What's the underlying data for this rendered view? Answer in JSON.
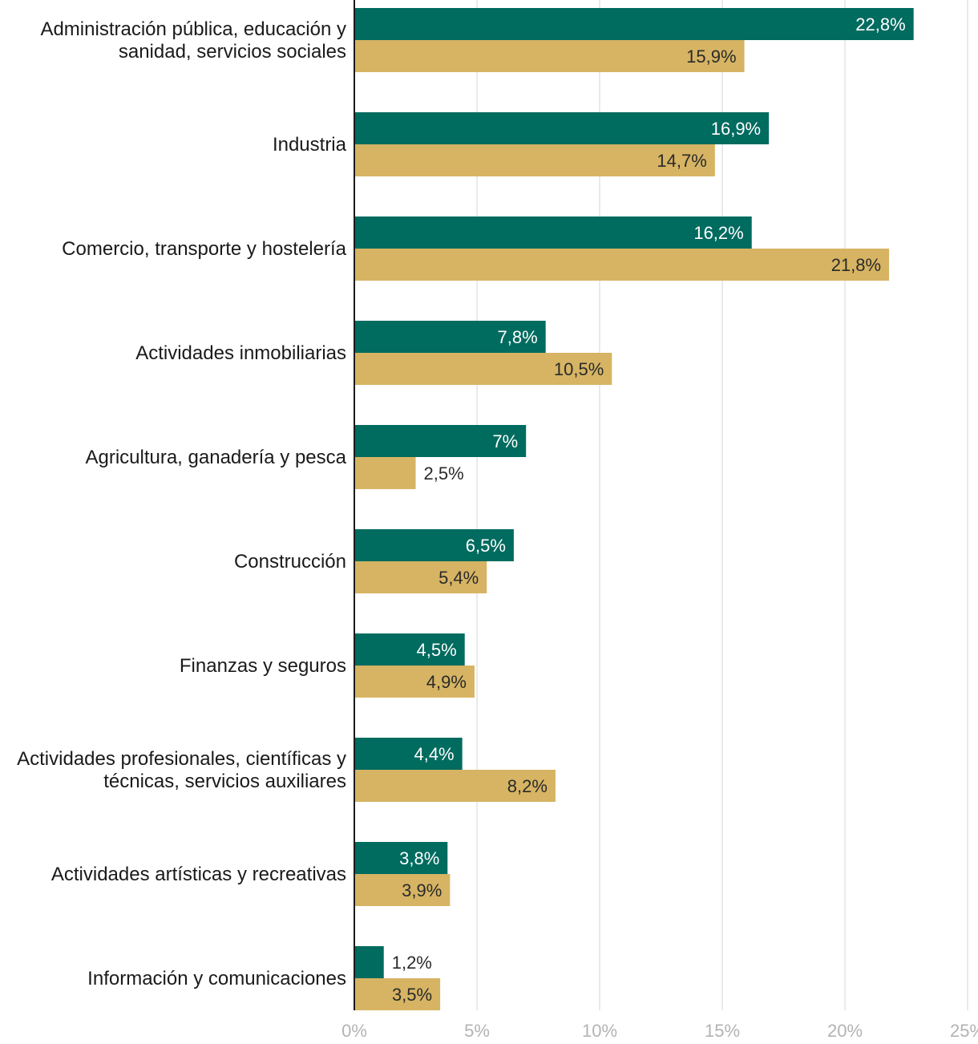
{
  "chart_data": {
    "type": "bar",
    "orientation": "horizontal",
    "categories": [
      [
        "Administración pública, educación y",
        "sanidad, servicios sociales"
      ],
      [
        "Industria"
      ],
      [
        "Comercio, transporte y hostelería"
      ],
      [
        "Actividades inmobiliarias"
      ],
      [
        "Agricultura, ganadería y pesca"
      ],
      [
        "Construcción"
      ],
      [
        "Finanzas y seguros"
      ],
      [
        "Actividades profesionales, científicas y",
        "técnicas, servicios auxiliares"
      ],
      [
        "Actividades artísticas y recreativas"
      ],
      [
        "Información y comunicaciones"
      ]
    ],
    "series": [
      {
        "color": "#006b5f",
        "values": [
          22.8,
          16.9,
          16.2,
          7.8,
          7,
          6.5,
          4.5,
          4.4,
          3.8,
          1.2
        ],
        "labels": [
          "22,8%",
          "16,9%",
          "16,2%",
          "7,8%",
          "7%",
          "6,5%",
          "4,5%",
          "4,4%",
          "3,8%",
          "1,2%"
        ]
      },
      {
        "color": "#d6b463",
        "values": [
          15.9,
          14.7,
          21.8,
          10.5,
          2.5,
          5.4,
          4.9,
          8.2,
          3.9,
          3.5
        ],
        "labels": [
          "15,9%",
          "14,7%",
          "21,8%",
          "10,5%",
          "2,5%",
          "5,4%",
          "4,9%",
          "8,2%",
          "3,9%",
          "3,5%"
        ]
      }
    ],
    "xlim": [
      0,
      25
    ],
    "xticks": [
      0,
      5,
      10,
      15,
      20,
      25
    ],
    "xtick_labels": [
      "0%",
      "5%",
      "10%",
      "15%",
      "20%",
      "25%"
    ],
    "grid": true,
    "legend": "none"
  }
}
